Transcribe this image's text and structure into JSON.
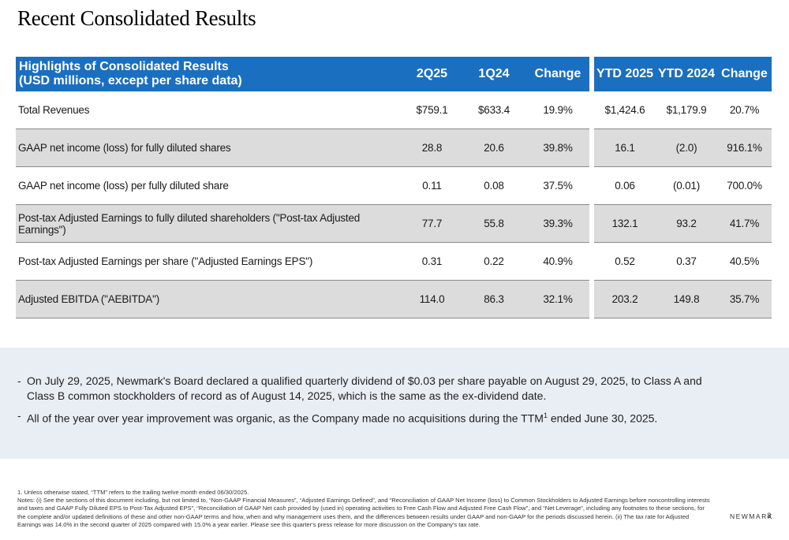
{
  "title": "Recent Consolidated Results",
  "table": {
    "header": {
      "label_line1": "Highlights of Consolidated Results",
      "label_line2": "(USD millions, except per share data)",
      "columns": [
        "2Q25",
        "1Q24",
        "Change",
        "YTD 2025",
        "YTD 2024",
        "Change"
      ]
    },
    "rows": [
      {
        "label": "Total Revenues",
        "values": [
          "$759.1",
          "$633.4",
          "19.9%",
          "$1,424.6",
          "$1,179.9",
          "20.7%"
        ]
      },
      {
        "label": "GAAP net income (loss) for fully diluted shares",
        "values": [
          "28.8",
          "20.6",
          "39.8%",
          "16.1",
          "(2.0)",
          "916.1%"
        ]
      },
      {
        "label": "GAAP net income (loss) per fully diluted share",
        "values": [
          "0.11",
          "0.08",
          "37.5%",
          "0.06",
          "(0.01)",
          "700.0%"
        ]
      },
      {
        "label": "Post-tax Adjusted Earnings to fully diluted shareholders (\"Post-tax Adjusted Earnings\")",
        "values": [
          "77.7",
          "55.8",
          "39.3%",
          "132.1",
          "93.2",
          "41.7%"
        ]
      },
      {
        "label": "Post-tax Adjusted Earnings per share (\"Adjusted Earnings EPS\")",
        "values": [
          "0.31",
          "0.22",
          "40.9%",
          "0.52",
          "0.37",
          "40.5%"
        ]
      },
      {
        "label": "Adjusted EBITDA (\"AEBITDA\")",
        "values": [
          "114.0",
          "86.3",
          "32.1%",
          "203.2",
          "149.8",
          "35.7%"
        ]
      }
    ]
  },
  "notes": {
    "bullet1": "On July 29, 2025, Newmark's Board declared a qualified quarterly dividend of $0.03 per share payable on August 29, 2025, to Class A and Class B common stockholders of record as of August 14, 2025, which is the same as the ex-dividend date.",
    "bullet2_before": "All of the year over year improvement was organic, as the Company made no acquisitions during the TTM",
    "bullet2_sup": "1",
    "bullet2_after": " ended June 30, 2025.",
    "dash": "-"
  },
  "footnotes": {
    "line1": "1. Unless otherwise stated, “TTM” refers to the trailing twelve month ended 06/30/2025.",
    "line2": "Notes: (i) See the sections of this document including, but not limited to, “Non-GAAP Financial Measures”, “Adjusted Earnings Defined”, and “Reconciliation of GAAP Net Income (loss) to Common Stockholders to Adjusted Earnings before noncontrolling interests and taxes and GAAP Fully Diluted EPS to Post-Tax Adjusted EPS”, “Reconciliation of GAAP Net cash provided by (used in) operating activities to Free Cash Flow and Adjusted Free Cash Flow”, and “Net Leverage”, including any footnotes to these sections, for the complete and/or updated definitions of these and other non-GAAP terms and how, when and why management uses them, and the differences between results under GAAP and non-GAAP for the periods discussed herein. (ii) The tax rate for Adjusted Earnings was 14.0% in the second quarter of 2025 compared with 15.0% a year earlier. Please see this quarter's press release for more discussion on the Company's tax rate."
  },
  "brand": "NEWMARK",
  "page_number": "3",
  "colors": {
    "header_blue": "#1a6fc0",
    "row_shade": "#dcdcdc",
    "notes_bg": "#e8eef4"
  }
}
